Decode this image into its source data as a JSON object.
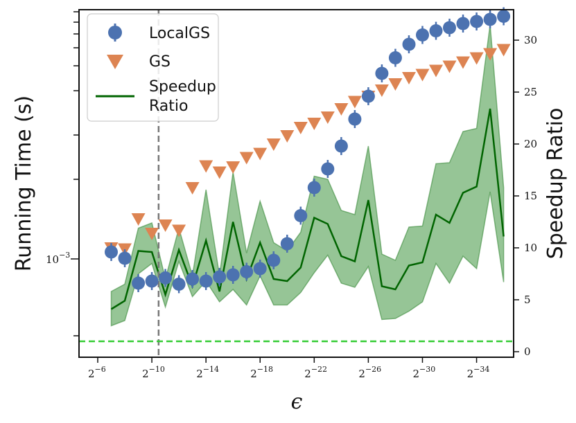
{
  "chart_data": {
    "type": "scatter",
    "ylabel": "Running Time (s)",
    "y2label": "Speedup Ratio",
    "xlabel": "ϵ",
    "x_tick_base": "2",
    "x_tick_exponents": [
      "−6",
      "−10",
      "−14",
      "−18",
      "−22",
      "−26",
      "−30",
      "−34"
    ],
    "x_tick_values": [
      -6,
      -10,
      -14,
      -18,
      -22,
      -26,
      -30,
      -34
    ],
    "y_left_scale": "log",
    "y_left_tick_label": "10",
    "y_left_tick_exp": "−3",
    "y2_ticks": [
      "0",
      "5",
      "10",
      "15",
      "20",
      "25",
      "30"
    ],
    "y2_tick_values": [
      0,
      5,
      10,
      15,
      20,
      25,
      30
    ],
    "y2lim": [
      -0.5,
      33
    ],
    "vline_exponent": -10.5,
    "hline_ratio": 1,
    "legend_position": "top-left",
    "series": [
      {
        "name": "LocalGS",
        "marker": "circle",
        "color": "#4c72b0",
        "x": [
          -7,
          -8,
          -9,
          -10,
          -11,
          -12,
          -13,
          -14,
          -15,
          -16,
          -17,
          -18,
          -19,
          -20,
          -21,
          -22,
          -23,
          -24,
          -25,
          -26,
          -27,
          -28,
          -29,
          -30,
          -31,
          -32,
          -33,
          -34,
          -35,
          -36
        ],
        "y": [
          9.6,
          9.0,
          6.6,
          6.8,
          7.1,
          6.5,
          7.0,
          6.8,
          7.2,
          7.4,
          7.7,
          8.0,
          8.8,
          10.4,
          13.1,
          15.8,
          17.6,
          19.8,
          22.4,
          24.6,
          26.8,
          28.3,
          29.6,
          30.5,
          30.9,
          31.2,
          31.6,
          31.8,
          32.0,
          32.3
        ]
      },
      {
        "name": "GS",
        "marker": "triangle-down",
        "color": "#dd8452",
        "x": [
          -7,
          -8,
          -9,
          -10,
          -11,
          -12,
          -13,
          -14,
          -15,
          -16,
          -17,
          -18,
          -19,
          -20,
          -21,
          -22,
          -23,
          -24,
          -25,
          -26,
          -27,
          -28,
          -29,
          -30,
          -31,
          -32,
          -33,
          -34,
          -35,
          -36
        ],
        "y": [
          10.0,
          9.9,
          12.8,
          11.4,
          12.2,
          11.7,
          15.8,
          17.9,
          17.3,
          17.8,
          18.7,
          19.1,
          20.0,
          20.8,
          21.6,
          22.0,
          22.6,
          23.4,
          24.1,
          24.6,
          25.2,
          25.8,
          26.4,
          26.7,
          27.1,
          27.5,
          27.9,
          28.3,
          28.7,
          29.1
        ]
      },
      {
        "name": "Speedup Ratio",
        "type": "line",
        "color": "#006400",
        "x": [
          -7,
          -8,
          -9,
          -10,
          -11,
          -12,
          -13,
          -14,
          -15,
          -16,
          -17,
          -18,
          -19,
          -20,
          -21,
          -22,
          -23,
          -24,
          -25,
          -26,
          -27,
          -28,
          -29,
          -30,
          -31,
          -32,
          -33,
          -34,
          -35,
          -36
        ],
        "y": [
          4.1,
          4.9,
          9.7,
          9.6,
          5.5,
          9.8,
          6.3,
          10.7,
          5.8,
          12.5,
          7.0,
          10.5,
          7.0,
          6.8,
          8.1,
          12.9,
          12.3,
          9.2,
          8.7,
          14.6,
          6.3,
          6.0,
          8.3,
          8.6,
          13.2,
          12.4,
          15.3,
          15.9,
          23.4,
          11.1
        ],
        "lower": [
          2.5,
          3.0,
          7.5,
          8.5,
          4.3,
          8.7,
          5.3,
          6.8,
          4.8,
          6.0,
          4.5,
          7.3,
          4.5,
          4.5,
          5.7,
          7.6,
          9.3,
          6.6,
          6.2,
          8.2,
          3.1,
          3.2,
          3.9,
          4.8,
          8.5,
          6.6,
          9.2,
          8.0,
          15.4,
          6.7
        ],
        "upper": [
          5.8,
          6.5,
          11.9,
          12.4,
          7.0,
          11.9,
          7.3,
          15.6,
          7.3,
          17.3,
          9.5,
          14.5,
          10.5,
          9.7,
          11.5,
          16.9,
          16.6,
          13.6,
          13.2,
          19.8,
          9.4,
          8.8,
          12.0,
          12.1,
          18.1,
          18.2,
          21.2,
          21.5,
          31.5,
          15.8
        ]
      }
    ]
  }
}
